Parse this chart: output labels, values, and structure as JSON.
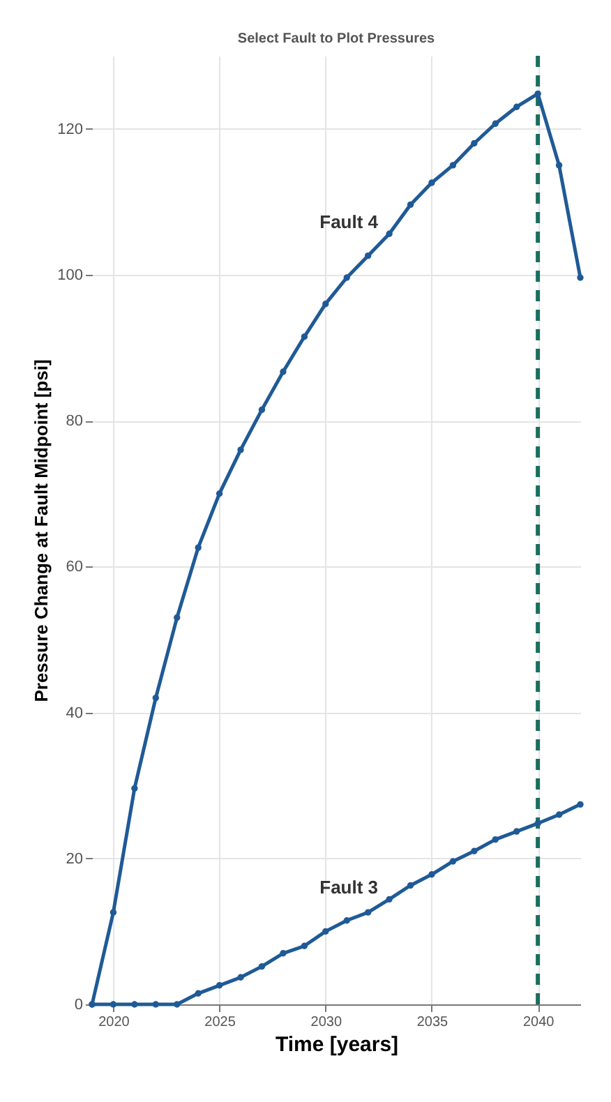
{
  "chart_data": {
    "type": "line",
    "title": "Select Fault to Plot Pressures",
    "xlabel": "Time [years]",
    "ylabel": "Pressure Change at Fault Midpoint [psi]",
    "x": [
      2019,
      2020,
      2021,
      2022,
      2023,
      2024,
      2025,
      2026,
      2027,
      2028,
      2029,
      2030,
      2031,
      2032,
      2033,
      2034,
      2035,
      2036,
      2037,
      2038,
      2039,
      2040,
      2041,
      2042
    ],
    "series": [
      {
        "name": "Fault 4",
        "color": "#1f5a96",
        "values": [
          0,
          12.6,
          29.6,
          42,
          53,
          62.6,
          70,
          76,
          81.5,
          86.7,
          91.5,
          96,
          99.6,
          102.6,
          105.6,
          109.6,
          112.6,
          115,
          118,
          120.7,
          123,
          124.8,
          115,
          99.6
        ]
      },
      {
        "name": "Fault 3",
        "color": "#1f5a96",
        "values": [
          0,
          0,
          0,
          0,
          0,
          1.5,
          2.6,
          3.7,
          5.2,
          7,
          8,
          10,
          11.5,
          12.6,
          14.4,
          16.3,
          17.8,
          19.6,
          21,
          22.6,
          23.7,
          24.8,
          26,
          27.4
        ]
      }
    ],
    "xlim": [
      2019,
      2042
    ],
    "xticks": [
      2020,
      2025,
      2030,
      2035,
      2040
    ],
    "ylim": [
      0,
      130
    ],
    "yticks": [
      0,
      20,
      40,
      60,
      80,
      100,
      120
    ],
    "ref_lines": [
      {
        "axis": "x",
        "value": 2040,
        "color": "#1a6e5e",
        "line_style": "dashed"
      }
    ],
    "grid": true,
    "marker": "circle",
    "line_style": "solid"
  }
}
